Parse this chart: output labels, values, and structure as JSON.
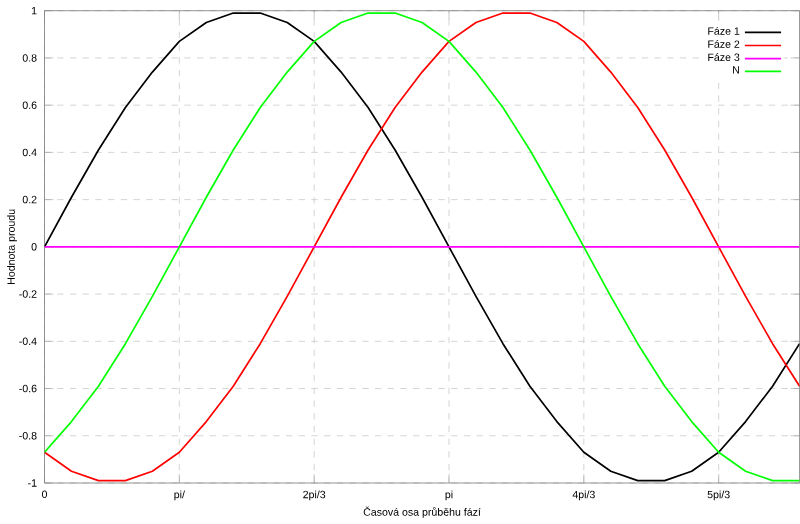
{
  "chart_data": {
    "type": "line",
    "xlabel": "Časová osa průběhu fází",
    "ylabel": "Hodnota proudu",
    "categories": [
      "0",
      null,
      null,
      null,
      null,
      "pi/",
      null,
      null,
      null,
      null,
      "2pi/3",
      null,
      null,
      null,
      null,
      "pi",
      null,
      null,
      null,
      null,
      "4pi/3",
      null,
      null,
      null,
      null,
      "5pi/3",
      null,
      null,
      null
    ],
    "series": [
      {
        "name": "Fáze 1",
        "color": "#000000",
        "values": [
          0,
          0.21,
          0.41,
          0.59,
          0.74,
          0.87,
          0.95,
          0.99,
          0.99,
          0.95,
          0.87,
          0.74,
          0.59,
          0.41,
          0.21,
          0,
          -0.21,
          -0.41,
          -0.59,
          -0.74,
          -0.87,
          -0.95,
          -0.99,
          -0.99,
          -0.95,
          -0.87,
          -0.74,
          -0.59,
          -0.41
        ]
      },
      {
        "name": "Fáze 2",
        "color": "#ff0000",
        "values": [
          -0.87,
          -0.95,
          -0.99,
          -0.99,
          -0.95,
          -0.87,
          -0.74,
          -0.59,
          -0.41,
          -0.21,
          0,
          0.21,
          0.41,
          0.59,
          0.74,
          0.87,
          0.95,
          0.99,
          0.99,
          0.95,
          0.87,
          0.74,
          0.59,
          0.41,
          0.21,
          0,
          -0.21,
          -0.41,
          -0.59
        ]
      },
      {
        "name": "Fáze 3",
        "color": "#ff00ff",
        "values": [
          0,
          0,
          0,
          0,
          0,
          0,
          0,
          0,
          0,
          0,
          0,
          0,
          0,
          0,
          0,
          0,
          0,
          0,
          0,
          0,
          0,
          0,
          0,
          0,
          0,
          0,
          0,
          0,
          0
        ]
      },
      {
        "name": "N",
        "color": "#00ff00",
        "values": [
          -0.87,
          -0.74,
          -0.59,
          -0.41,
          -0.21,
          0,
          0.21,
          0.41,
          0.59,
          0.74,
          0.87,
          0.95,
          0.99,
          0.99,
          0.95,
          0.87,
          0.74,
          0.59,
          0.41,
          0.21,
          0,
          -0.21,
          -0.41,
          -0.59,
          -0.74,
          -0.87,
          -0.95,
          -0.99,
          -0.99
        ]
      }
    ],
    "ylim": [
      -1,
      1
    ],
    "yticks": [
      -1,
      -0.8,
      -0.6,
      -0.4,
      -0.2,
      0,
      0.2,
      0.4,
      0.6,
      0.8,
      1
    ],
    "grid": true,
    "legend": "top right",
    "marker": "none",
    "line_style": "solid"
  }
}
